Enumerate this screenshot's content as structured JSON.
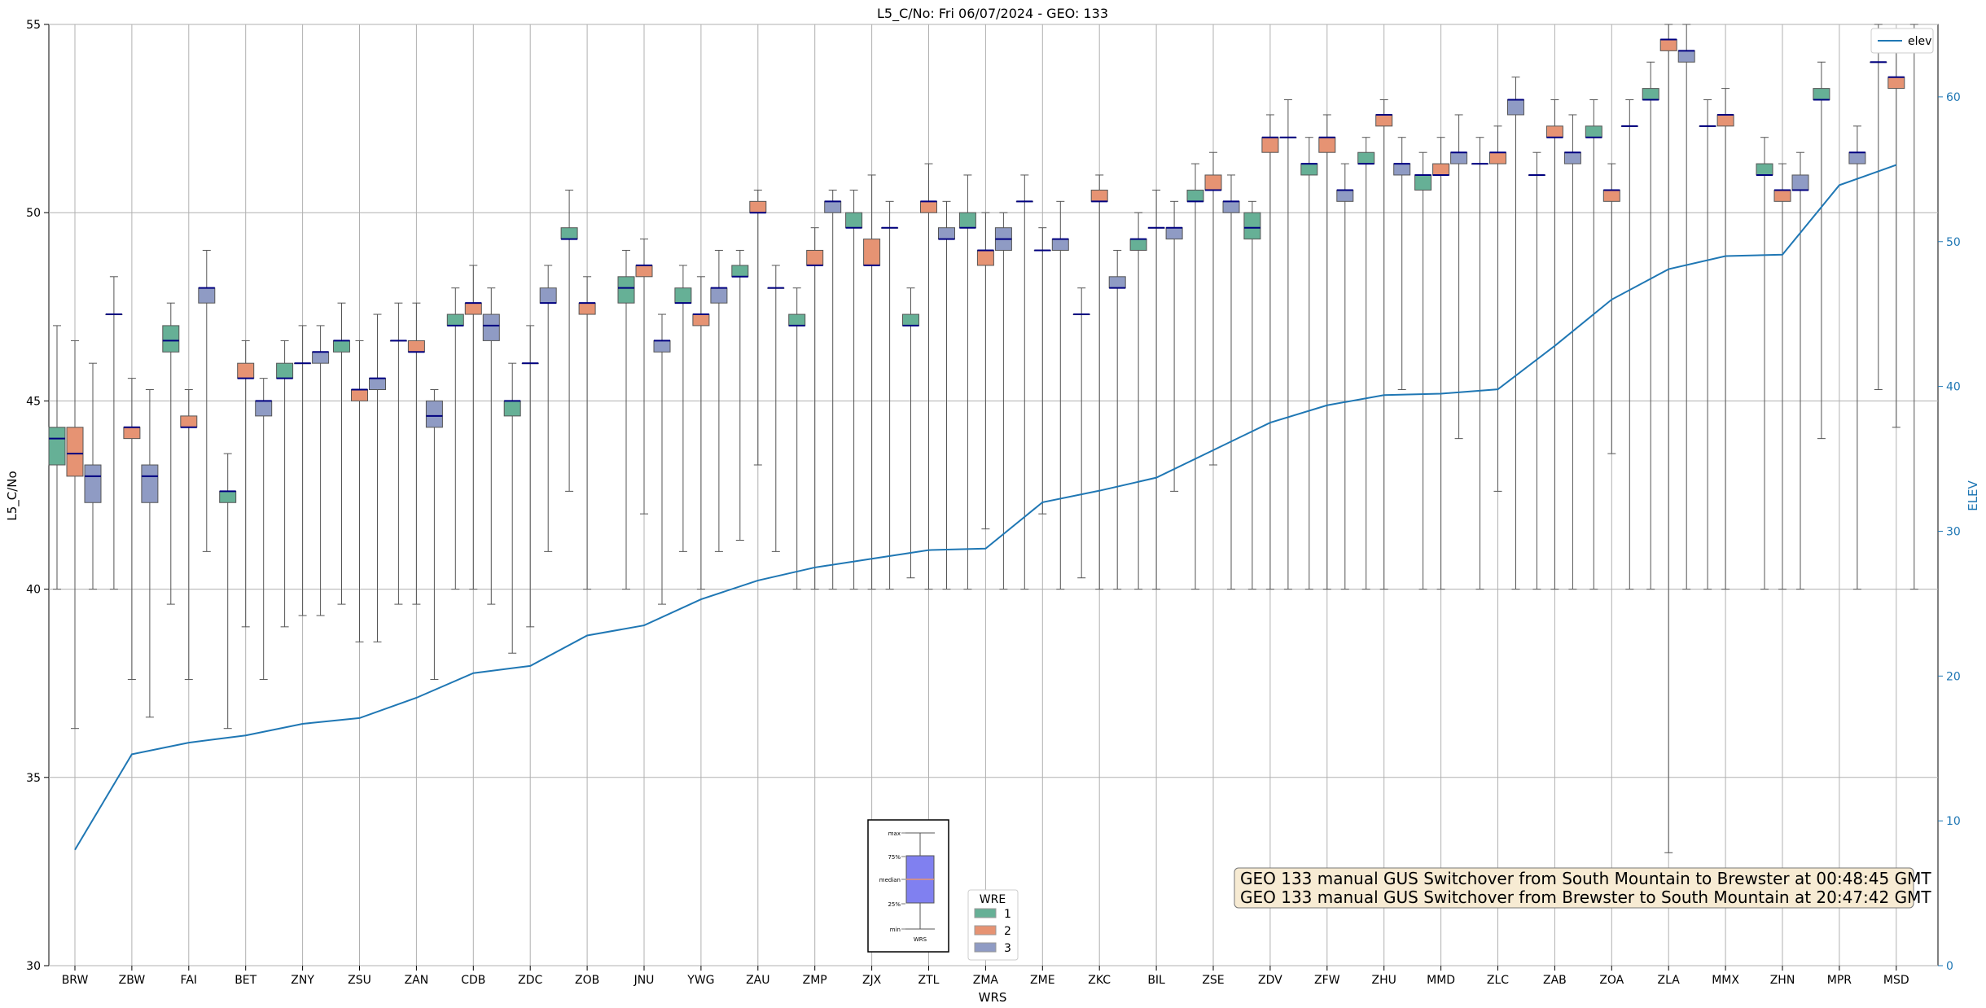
{
  "chart_data": {
    "type": "box",
    "title": "L5_C/No: Fri 06/07/2024 - GEO: 133",
    "xlabel": "WRS",
    "ylabel": "L5_C/No",
    "ylabel_right": "ELEV",
    "ylim": [
      30,
      55
    ],
    "ylim_right": [
      0,
      65
    ],
    "y_ticks": [
      "30",
      "35",
      "40",
      "45",
      "50",
      "55"
    ],
    "y_ticks_right": [
      "0",
      "10",
      "20",
      "30",
      "40",
      "50",
      "60"
    ],
    "grid": true,
    "categories": [
      "BRW",
      "ZBW",
      "FAI",
      "BET",
      "ZNY",
      "ZSU",
      "ZAN",
      "CDB",
      "ZDC",
      "ZOB",
      "JNU",
      "YWG",
      "ZAU",
      "ZMP",
      "ZJX",
      "ZTL",
      "ZMA",
      "ZME",
      "ZKC",
      "BIL",
      "ZSE",
      "ZDV",
      "ZFW",
      "ZHU",
      "MMD",
      "ZLC",
      "ZAB",
      "ZOA",
      "ZLA",
      "MMX",
      "ZHN",
      "MPR",
      "MSD"
    ],
    "colors": {
      "1": "#66b096",
      "2": "#e69373",
      "3": "#8f9bc4",
      "median": "#000080",
      "elev": "#1f77b4"
    },
    "legend": {
      "title": "WRE",
      "entries": [
        "1",
        "2",
        "3"
      ],
      "placement": "bottom-center"
    },
    "legend_line": {
      "label": "elev",
      "placement": "top-right"
    },
    "key_labels": [
      "max",
      "75%",
      "median",
      "25%",
      "min",
      "WRS"
    ],
    "elev": [
      8,
      14.6,
      15.4,
      15.9,
      16.7,
      17.1,
      18.5,
      20.2,
      20.7,
      22.8,
      23.5,
      25.3,
      26.6,
      27.5,
      28.1,
      28.7,
      28.8,
      32.0,
      32.8,
      33.7,
      35.6,
      37.5,
      38.7,
      39.4,
      39.5,
      39.8,
      42.8,
      46.0,
      48.1,
      49.0,
      49.1,
      53.9,
      55.3
    ],
    "boxes": [
      [
        [
          40,
          43.3,
          44,
          44.3,
          47
        ],
        [
          36.3,
          43,
          43.6,
          44.3,
          46.6
        ],
        [
          40,
          42.3,
          43,
          43.3,
          46
        ]
      ],
      [
        [
          40,
          47.3,
          47.3,
          47.3,
          48.3
        ],
        [
          37.6,
          44,
          44.3,
          44.3,
          45.6
        ],
        [
          36.6,
          42.3,
          43,
          43.3,
          45.3
        ]
      ],
      [
        [
          39.6,
          46.3,
          46.6,
          47,
          47.6
        ],
        [
          37.6,
          44.3,
          44.3,
          44.6,
          45.3
        ],
        [
          41,
          47.6,
          48,
          48,
          49
        ]
      ],
      [
        [
          36.3,
          42.3,
          42.6,
          42.6,
          43.6
        ],
        [
          39,
          45.6,
          45.6,
          46,
          46.6
        ],
        [
          37.6,
          44.6,
          45,
          45,
          45.6
        ]
      ],
      [
        [
          39,
          45.6,
          45.6,
          46,
          46.6
        ],
        [
          39.3,
          46,
          46,
          46,
          47
        ],
        [
          39.3,
          46,
          46.3,
          46.3,
          47
        ]
      ],
      [
        [
          39.6,
          46.3,
          46.6,
          46.6,
          47.6
        ],
        [
          38.6,
          45,
          45.3,
          45.3,
          46.6
        ],
        [
          38.6,
          45.3,
          45.6,
          45.6,
          47.3
        ]
      ],
      [
        [
          39.6,
          46.6,
          46.6,
          46.6,
          47.6
        ],
        [
          39.6,
          46.3,
          46.3,
          46.6,
          47.6
        ],
        [
          37.6,
          44.3,
          44.6,
          45,
          45.3
        ]
      ],
      [
        [
          40,
          47,
          47,
          47.3,
          48
        ],
        [
          40,
          47.3,
          47.6,
          47.6,
          48.6
        ],
        [
          39.6,
          46.6,
          47,
          47.3,
          48
        ]
      ],
      [
        [
          38.3,
          44.6,
          45,
          45,
          46
        ],
        [
          39,
          46,
          46,
          46,
          47
        ],
        [
          41,
          47.6,
          47.6,
          48,
          48.6
        ]
      ],
      [
        [
          42.6,
          49.3,
          49.3,
          49.6,
          50.6
        ],
        [
          40,
          47.3,
          47.6,
          47.6,
          48.3
        ],
        null
      ],
      [
        [
          40,
          47.6,
          48,
          48.3,
          49
        ],
        [
          42,
          48.3,
          48.6,
          48.6,
          49.3
        ],
        [
          39.6,
          46.3,
          46.6,
          46.6,
          47.3
        ]
      ],
      [
        [
          41,
          47.6,
          47.6,
          48,
          48.6
        ],
        [
          40,
          47,
          47.3,
          47.3,
          48.3
        ],
        [
          41,
          47.6,
          48,
          48,
          49
        ]
      ],
      [
        [
          41.3,
          48.3,
          48.3,
          48.6,
          49
        ],
        [
          43.3,
          50,
          50,
          50.3,
          50.6
        ],
        [
          41,
          48,
          48,
          48,
          48.6
        ]
      ],
      [
        [
          40,
          47,
          47,
          47.3,
          48
        ],
        [
          40,
          48.6,
          48.6,
          49,
          49.6
        ],
        [
          40,
          50,
          50.3,
          50.3,
          50.6
        ]
      ],
      [
        [
          40,
          49.6,
          49.6,
          50,
          50.6
        ],
        [
          40,
          48.6,
          48.6,
          49.3,
          51
        ],
        [
          40,
          49.6,
          49.6,
          49.6,
          50.3
        ]
      ],
      [
        [
          40.3,
          47,
          47,
          47.3,
          48
        ],
        [
          40,
          50,
          50.3,
          50.3,
          51.3
        ],
        [
          40,
          49.3,
          49.3,
          49.6,
          50.3
        ]
      ],
      [
        [
          40,
          49.6,
          49.6,
          50,
          51
        ],
        [
          41.6,
          48.6,
          49,
          49,
          50
        ],
        [
          40,
          49,
          49.3,
          49.6,
          50
        ]
      ],
      [
        [
          40,
          50.3,
          50.3,
          50.3,
          51
        ],
        [
          42,
          49,
          49,
          49,
          49.6
        ],
        [
          40,
          49,
          49.3,
          49.3,
          50.3
        ]
      ],
      [
        [
          40.3,
          47.3,
          47.3,
          47.3,
          48
        ],
        [
          40,
          50.3,
          50.3,
          50.6,
          51
        ],
        [
          40,
          48,
          48,
          48.3,
          49
        ]
      ],
      [
        [
          40,
          49,
          49.3,
          49.3,
          50
        ],
        [
          40,
          49.6,
          49.6,
          49.6,
          50.6
        ],
        [
          42.6,
          49.3,
          49.6,
          49.6,
          50.3
        ]
      ],
      [
        [
          40,
          50.3,
          50.3,
          50.6,
          51.3
        ],
        [
          43.3,
          50.6,
          50.6,
          51,
          51.6
        ],
        [
          40,
          50,
          50.3,
          50.3,
          51
        ]
      ],
      [
        [
          40,
          49.3,
          49.6,
          50,
          50.3
        ],
        [
          40,
          51.6,
          52,
          52,
          52.6
        ],
        [
          40,
          52,
          52,
          52,
          53
        ]
      ],
      [
        [
          40,
          51,
          51.3,
          51.3,
          52
        ],
        [
          40,
          51.6,
          52,
          52,
          52.6
        ],
        [
          40,
          50.3,
          50.6,
          50.6,
          51.3
        ]
      ],
      [
        [
          40,
          51.3,
          51.3,
          51.6,
          52
        ],
        [
          40,
          52.3,
          52.6,
          52.6,
          53
        ],
        [
          45.3,
          51,
          51.3,
          51.3,
          52
        ]
      ],
      [
        [
          40,
          50.6,
          51,
          51,
          51.6
        ],
        [
          40,
          51,
          51,
          51.3,
          52
        ],
        [
          44,
          51.3,
          51.6,
          51.6,
          52.6
        ]
      ],
      [
        [
          40,
          51.3,
          51.3,
          51.3,
          52
        ],
        [
          42.6,
          51.3,
          51.6,
          51.6,
          52.3
        ],
        [
          40,
          52.6,
          53,
          53,
          53.6
        ]
      ],
      [
        [
          40,
          51,
          51,
          51,
          51.6
        ],
        [
          40,
          52,
          52,
          52.3,
          53
        ],
        [
          40,
          51.3,
          51.6,
          51.6,
          52.6
        ]
      ],
      [
        [
          40,
          52,
          52,
          52.3,
          53
        ],
        [
          43.6,
          50.3,
          50.6,
          50.6,
          51.3
        ],
        [
          40,
          52.3,
          52.3,
          52.3,
          53
        ]
      ],
      [
        [
          40,
          53,
          53,
          53.3,
          54
        ],
        [
          33,
          54.3,
          54.6,
          54.6,
          55
        ],
        [
          40,
          54,
          54.3,
          54.3,
          55
        ]
      ],
      [
        [
          40,
          52.3,
          52.3,
          52.3,
          53
        ],
        [
          40,
          52.3,
          52.6,
          52.6,
          53.3
        ],
        null
      ],
      [
        [
          40,
          51,
          51,
          51.3,
          52
        ],
        [
          40,
          50.3,
          50.6,
          50.6,
          51.3
        ],
        [
          40,
          50.6,
          50.6,
          51,
          51.6
        ]
      ],
      [
        [
          44,
          53,
          53,
          53.3,
          54
        ],
        null,
        [
          40,
          51.3,
          51.6,
          51.6,
          52.3
        ]
      ],
      [
        [
          45.3,
          54,
          54,
          54,
          55
        ],
        [
          44.3,
          53.3,
          53.6,
          53.6,
          54.3
        ],
        [
          40,
          54.3,
          54.3,
          54.3,
          55
        ]
      ]
    ],
    "annotations": [
      "GEO 133 manual GUS Switchover from South Mountain to Brewster at 00:48:45 GMT",
      "GEO 133 manual GUS Switchover from Brewster to South Mountain at 20:47:42 GMT"
    ]
  }
}
